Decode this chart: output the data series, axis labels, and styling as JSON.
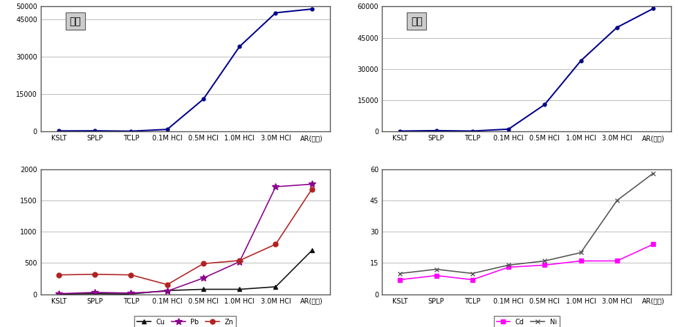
{
  "x_labels": [
    "KSLT",
    "SPLP",
    "TCLP",
    "0.1M HCl",
    "0.5M HCl",
    "1.0M HCl",
    "3.0M HCl",
    "AR(왕수)"
  ],
  "top_left": {
    "title": "비소",
    "color": "#00008B",
    "values": [
      300,
      350,
      200,
      900,
      13000,
      34000,
      47500,
      49000
    ],
    "ylim": [
      0,
      50000
    ],
    "yticks": [
      0,
      15000,
      30000,
      45000,
      50000
    ],
    "ytick_labels": [
      "0",
      "15000",
      "30000",
      "45000",
      "50000"
    ]
  },
  "top_right": {
    "title": "비소",
    "color": "#00008B",
    "values": [
      300,
      500,
      300,
      1200,
      13000,
      34000,
      50000,
      59000
    ],
    "ylim": [
      0,
      60000
    ],
    "yticks": [
      0,
      15000,
      30000,
      45000,
      60000
    ],
    "ytick_labels": [
      "0",
      "15000",
      "30000",
      "45000",
      "60000"
    ]
  },
  "bottom_left": {
    "Cu": {
      "values": [
        5,
        10,
        5,
        60,
        80,
        80,
        120,
        700
      ],
      "color": "#111111",
      "marker": "^",
      "markersize": 5
    },
    "Pb": {
      "values": [
        10,
        30,
        20,
        50,
        260,
        520,
        1720,
        1760
      ],
      "color": "#8B008B",
      "marker": "*",
      "markersize": 7
    },
    "Zn": {
      "values": [
        310,
        320,
        310,
        155,
        490,
        540,
        800,
        1680
      ],
      "color": "#B22222",
      "marker": "o",
      "markersize": 5
    },
    "ylim": [
      0,
      2000
    ],
    "yticks": [
      0,
      500,
      1000,
      1500,
      2000
    ],
    "ytick_labels": [
      "0",
      "500",
      "1000",
      "1500",
      "2000"
    ]
  },
  "bottom_right": {
    "Cd": {
      "values": [
        7,
        9,
        7,
        13,
        14,
        16,
        16,
        24
      ],
      "color": "#FF00FF",
      "marker": "s",
      "markersize": 5
    },
    "Ni": {
      "values": [
        10,
        12,
        10,
        14,
        16,
        20,
        45,
        58
      ],
      "color": "#555555",
      "marker": "x",
      "markersize": 5
    },
    "ylim": [
      0,
      60
    ],
    "yticks": [
      0,
      15,
      30,
      45,
      60
    ],
    "ytick_labels": [
      "0",
      "15",
      "30",
      "45",
      "60"
    ]
  },
  "background_color": "#ffffff",
  "grid_color": "#bbbbbb",
  "font_size_tick": 7,
  "font_size_title": 10,
  "font_size_legend": 7
}
